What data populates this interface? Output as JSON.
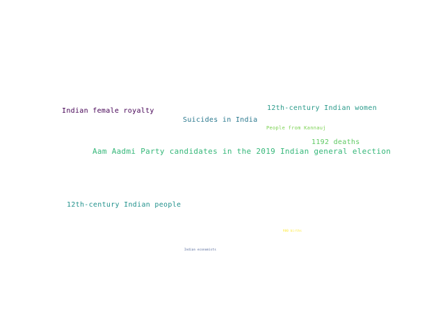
{
  "words": [
    {
      "text": "Indian female royalty",
      "color": "#440154"
    },
    {
      "text": "12th-century Indian women",
      "color": "#2a9a8a"
    },
    {
      "text": "Suicides in India",
      "color": "#2a788e"
    },
    {
      "text": "People from Kannauj",
      "color": "#7ad151"
    },
    {
      "text": "1192 deaths",
      "color": "#5ec962"
    },
    {
      "text": "Aam Aadmi Party candidates in the 2019 Indian general election",
      "color": "#35b779"
    },
    {
      "text": "12th-century Indian people",
      "color": "#21918c"
    },
    {
      "text": "900 births",
      "color": "#fde725"
    },
    {
      "text": "Indian economists",
      "color": "#3b528b"
    }
  ]
}
